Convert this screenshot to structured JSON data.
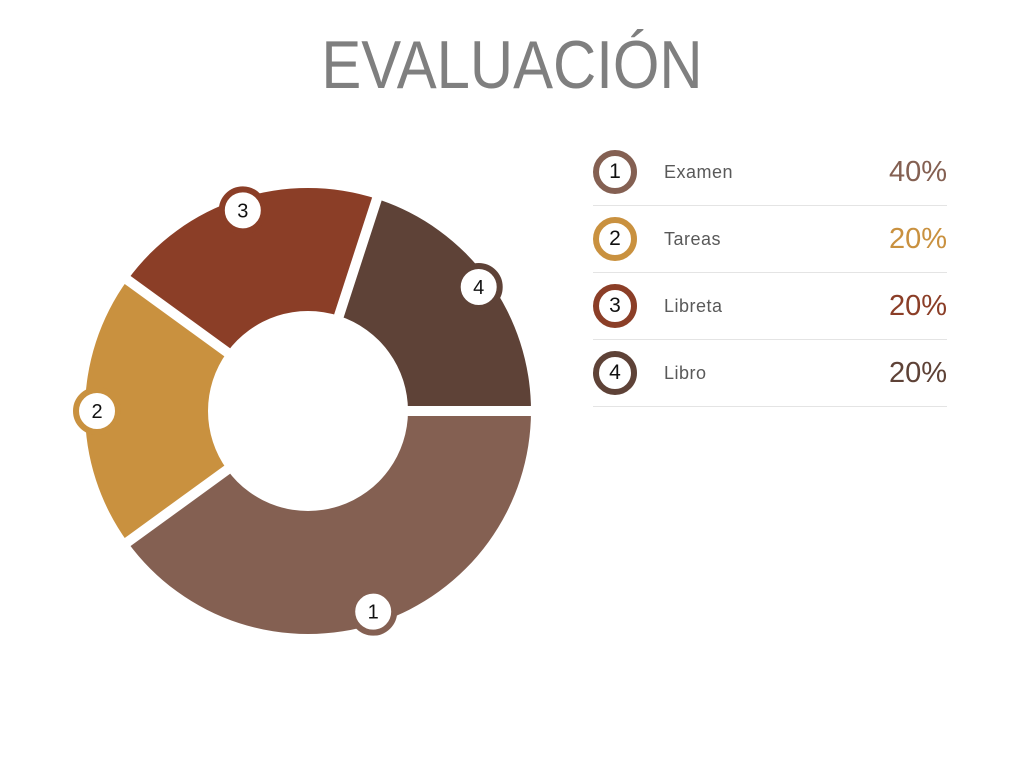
{
  "title": "EVALUACIÓN",
  "chart_data": {
    "type": "pie",
    "subtype": "donut",
    "title": "EVALUACIÓN",
    "start_angle_deg": 90,
    "direction": "clockwise",
    "categories": [
      "Examen",
      "Tareas",
      "Libreta",
      "Libro"
    ],
    "values": [
      40,
      20,
      20,
      20
    ],
    "units": "%",
    "labels": [
      "1",
      "2",
      "3",
      "4"
    ],
    "colors": [
      "#846052",
      "#c9913f",
      "#8b3e27",
      "#5e4237"
    ],
    "legend_position": "right",
    "grid": false
  },
  "legend": {
    "items": [
      {
        "number": "1",
        "label": "Examen",
        "value": "40%",
        "color": "#846052"
      },
      {
        "number": "2",
        "label": "Tareas",
        "value": "20%",
        "color": "#c9913f"
      },
      {
        "number": "3",
        "label": "Libreta",
        "value": "20%",
        "color": "#8b3e27"
      },
      {
        "number": "4",
        "label": "Libro",
        "value": "20%",
        "color": "#5e4237"
      }
    ]
  },
  "style": {
    "title_color": "#7f7f7f",
    "label_color": "#595959",
    "divider_color": "#e4e4e4",
    "background": "#ffffff"
  }
}
